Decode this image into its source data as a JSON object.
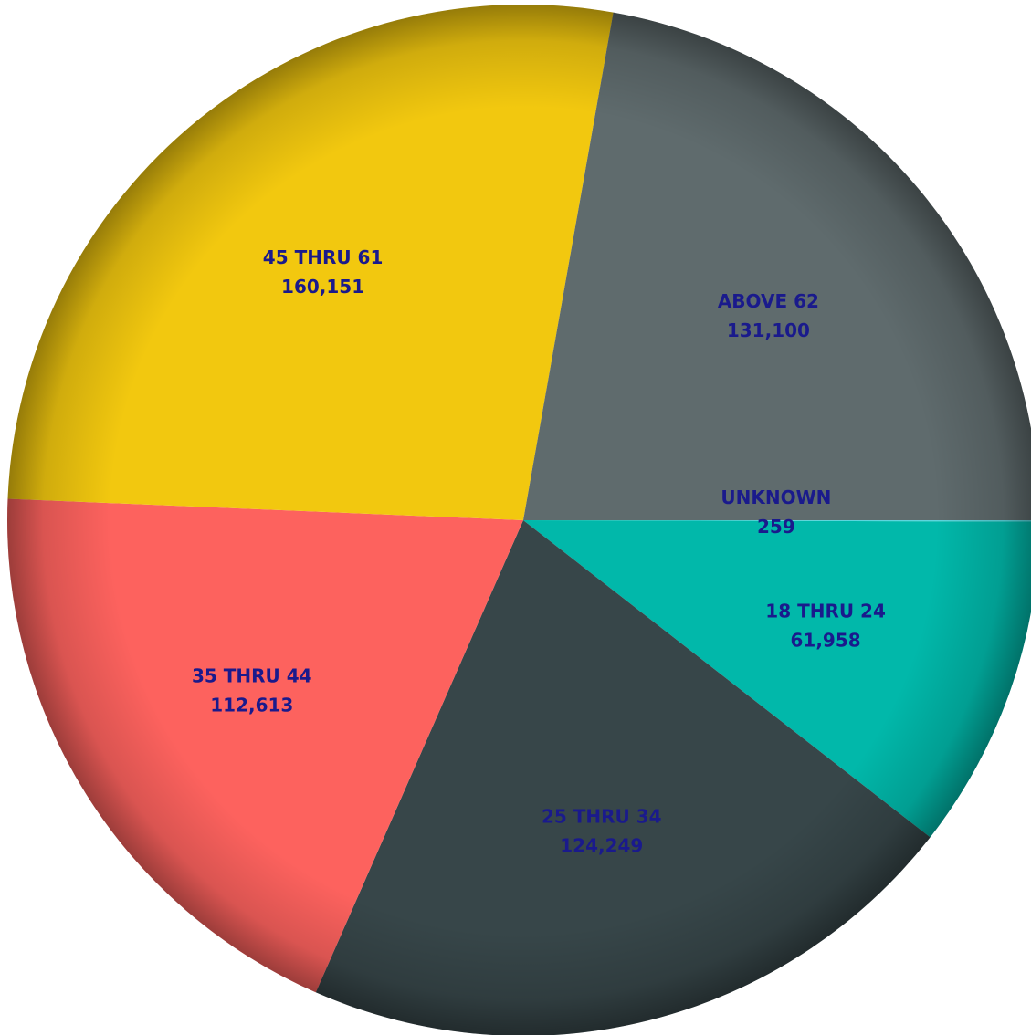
{
  "chart_data": {
    "type": "pie",
    "title": "",
    "label_color": "#1a1a8c",
    "slices": [
      {
        "label": "UNKNOWN",
        "value": 259,
        "display": "259",
        "color": "#5dd5de"
      },
      {
        "label": "18 THRU 24",
        "value": 61958,
        "display": "61,958",
        "color": "#01b8aa"
      },
      {
        "label": "25 THRU 34",
        "value": 124249,
        "display": "124,249",
        "color": "#374649"
      },
      {
        "label": "35 THRU 44",
        "value": 112613,
        "display": "112,613",
        "color": "#fd625e"
      },
      {
        "label": "45 THRU 61",
        "value": 160151,
        "display": "160,151",
        "color": "#f2c80f"
      },
      {
        "label": "ABOVE 62",
        "value": 131100,
        "display": "131,100",
        "color": "#5f6b6d"
      }
    ]
  }
}
